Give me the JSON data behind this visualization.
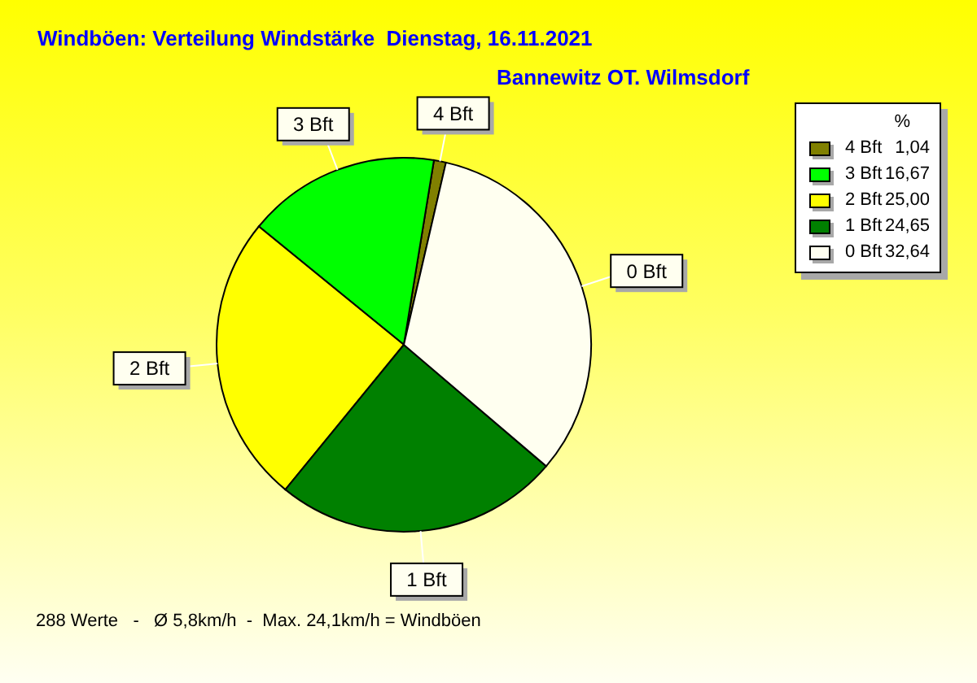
{
  "chart_data": {
    "type": "pie",
    "title": "Windböen: Verteilung Windstärke  Dienstag, 16.11.2021",
    "subtitle": "Bannewitz OT. Wilmsdorf",
    "categories": [
      "4 Bft",
      "3 Bft",
      "2 Bft",
      "1 Bft",
      "0 Bft"
    ],
    "values": [
      1.04,
      16.67,
      25.0,
      24.65,
      32.64
    ],
    "colors": [
      "#808000",
      "#00ff00",
      "#ffff00",
      "#008000",
      "#fffff0"
    ],
    "value_labels": [
      "1,04",
      "16,67",
      "25,00",
      "24,65",
      "32,64"
    ],
    "legend_title": "%",
    "legend": "top right",
    "annotations": [
      "288 Werte   -   Ø 5,8km/h  -  Max. 24,1km/h = Windböen"
    ]
  }
}
